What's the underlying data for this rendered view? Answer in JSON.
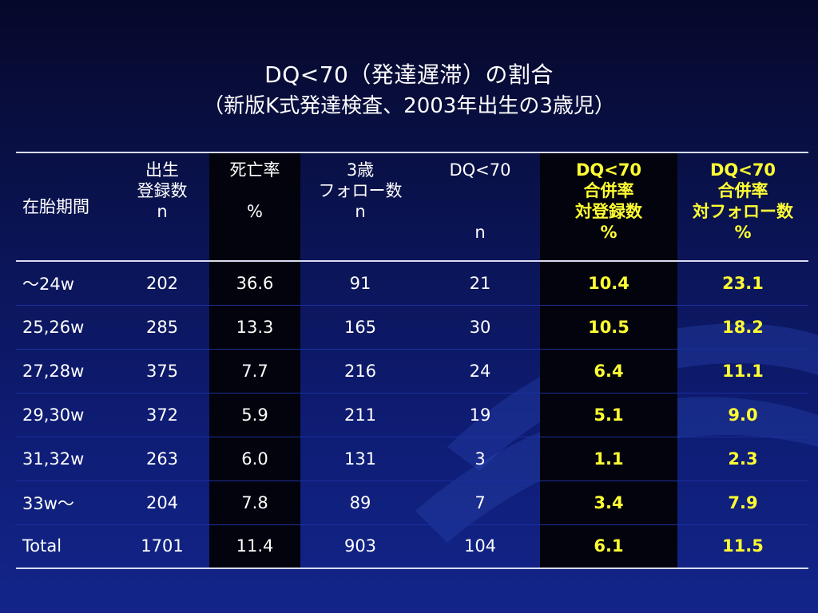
{
  "title": {
    "line1": "DQ<70（発達遅滞）の割合",
    "line2": "（新版K式発達検査、2003年出生の3歳児）"
  },
  "colors": {
    "accent_yellow": "#ffff33",
    "background": "#0e1c74",
    "dark_column": "#02030c"
  },
  "table": {
    "headers": [
      {
        "lines": [
          "在胎期間"
        ]
      },
      {
        "lines": [
          "出生",
          "登録数",
          "n"
        ]
      },
      {
        "lines": [
          "死亡率",
          "",
          "%"
        ]
      },
      {
        "lines": [
          "3歳",
          "フォロー数",
          "n"
        ]
      },
      {
        "lines": [
          "DQ<70",
          "",
          "n"
        ]
      },
      {
        "lines": [
          "DQ<70",
          "合併率",
          "対登録数",
          "%"
        ]
      },
      {
        "lines": [
          "DQ<70",
          "合併率",
          "対フォロー数",
          "%"
        ]
      }
    ],
    "rows": [
      [
        "～24w",
        "202",
        "36.6",
        "91",
        "21",
        "10.4",
        "23.1"
      ],
      [
        "25,26w",
        "285",
        "13.3",
        "165",
        "30",
        "10.5",
        "18.2"
      ],
      [
        "27,28w",
        "375",
        "7.7",
        "216",
        "24",
        "6.4",
        "11.1"
      ],
      [
        "29,30w",
        "372",
        "5.9",
        "211",
        "19",
        "5.1",
        "9.0"
      ],
      [
        "31,32w",
        "263",
        "6.0",
        "131",
        "3",
        "1.1",
        "2.3"
      ],
      [
        "33w～",
        "204",
        "7.8",
        "89",
        "7",
        "3.4",
        "7.9"
      ],
      [
        "Total",
        "1701",
        "11.4",
        "903",
        "104",
        "6.1",
        "11.5"
      ]
    ]
  }
}
